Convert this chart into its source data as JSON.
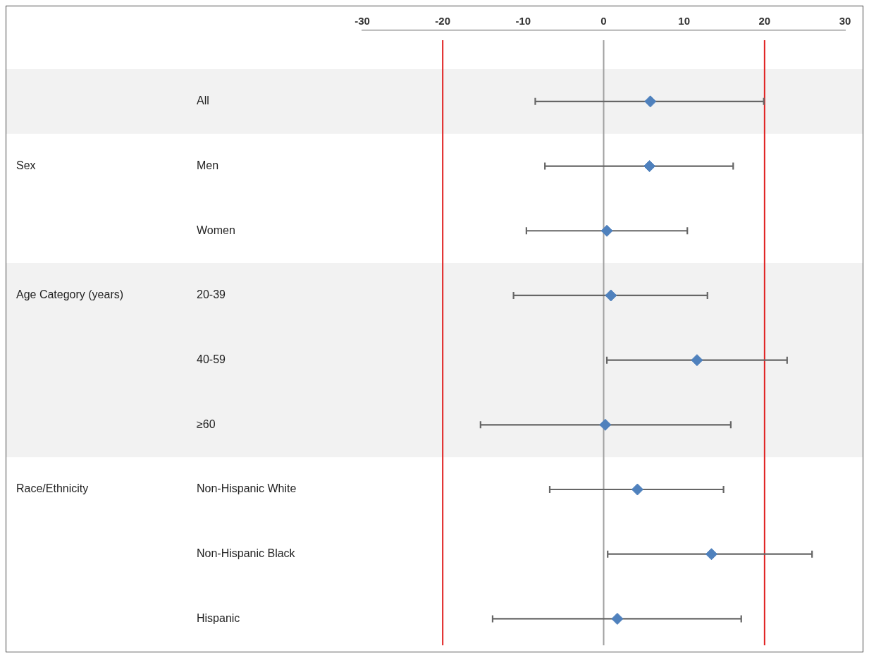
{
  "chart_data": {
    "type": "scatter",
    "orientation": "horizontal",
    "categories": [
      "All",
      "Men",
      "Women",
      "20-39",
      "40-59",
      "≥60",
      "Non-Hispanic White",
      "Non-Hispanic Black",
      "Hispanic"
    ],
    "values": [
      5.8,
      5.7,
      0.4,
      0.9,
      11.6,
      0.2,
      4.2,
      13.4,
      1.7
    ],
    "errors": [
      [
        -8.5,
        19.9
      ],
      [
        -7.3,
        16.1
      ],
      [
        -9.6,
        10.4
      ],
      [
        -11.2,
        12.9
      ],
      [
        0.4,
        22.8
      ],
      [
        -15.3,
        15.8
      ],
      [
        -6.7,
        14.9
      ],
      [
        0.5,
        25.9
      ],
      [
        -13.8,
        17.1
      ]
    ],
    "color": "#4f81bd",
    "marker": "diamond",
    "xlim": [
      -30,
      30
    ],
    "xticks": [
      -30,
      -20,
      -10,
      0,
      10,
      20,
      30
    ],
    "ref_lines": [
      {
        "axis": "x",
        "value": -20,
        "color": "#e02020"
      },
      {
        "axis": "x",
        "value": 20,
        "color": "#e02020"
      },
      {
        "axis": "x",
        "value": 0,
        "color": "#a0a0a0"
      }
    ],
    "bands": [
      {
        "axis": "y",
        "from": "All",
        "to": "All",
        "color": "#f2f2f2"
      },
      {
        "axis": "y",
        "from": "20-39",
        "to": "≥60",
        "color": "#f2f2f2"
      }
    ],
    "annotations": [
      "Sex",
      "Age Category (years)",
      "Race/Ethnicity"
    ],
    "legend": false
  }
}
